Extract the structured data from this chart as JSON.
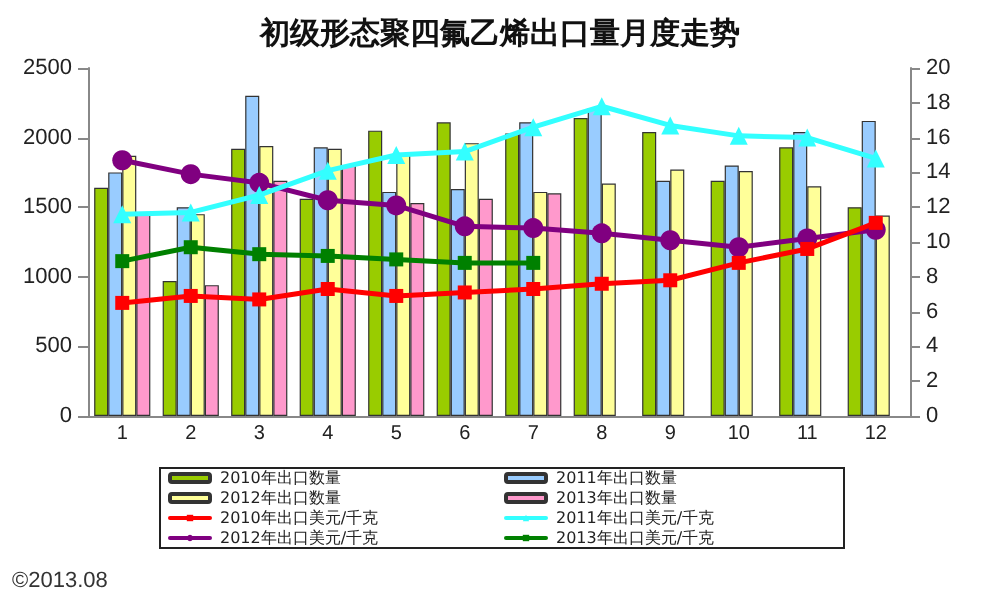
{
  "chart_data": {
    "type": "bar",
    "title": "初级形态聚四氟乙烯出口量月度走势",
    "categories": [
      "1",
      "2",
      "3",
      "4",
      "5",
      "6",
      "7",
      "8",
      "9",
      "10",
      "11",
      "12"
    ],
    "series": [
      {
        "name": "2010年出口数量",
        "color": "#99cc00",
        "values": [
          1640,
          970,
          1920,
          1560,
          2050,
          2110,
          2030,
          2140,
          2040,
          1690,
          1930,
          1500
        ]
      },
      {
        "name": "2011年出口数量",
        "color": "#99ccff",
        "values": [
          1750,
          1500,
          2300,
          1930,
          1610,
          1630,
          2110,
          2210,
          1690,
          1800,
          2040,
          2120
        ]
      },
      {
        "name": "2012年出口数量",
        "color": "#ffff99",
        "values": [
          1870,
          1450,
          1940,
          1920,
          1880,
          1960,
          1610,
          1670,
          1770,
          1760,
          1650,
          1440
        ]
      },
      {
        "name": "2013年出口数量",
        "color": "#ff99cc",
        "values": [
          1450,
          940,
          1690,
          1800,
          1530,
          1560,
          1600,
          null,
          null,
          null,
          null,
          null
        ]
      },
      {
        "name": "2010年出口美元/千克",
        "type": "line",
        "axis": "y2",
        "marker": "square",
        "color": "#ff0000",
        "values": [
          6.5,
          6.9,
          6.7,
          7.3,
          6.9,
          7.1,
          7.3,
          7.6,
          7.8,
          8.8,
          9.6,
          11.1
        ]
      },
      {
        "name": "2011年出口美元/千克",
        "type": "line",
        "axis": "y2",
        "marker": "triangle",
        "color": "#33ffff",
        "values": [
          11.6,
          11.7,
          12.7,
          14.1,
          15.0,
          15.2,
          16.6,
          17.8,
          16.7,
          16.1,
          16.0,
          14.8
        ]
      },
      {
        "name": "2012年出口美元/千克",
        "type": "line",
        "axis": "y2",
        "marker": "circle",
        "color": "#800080",
        "values": [
          14.7,
          13.9,
          13.4,
          12.4,
          12.1,
          10.9,
          10.8,
          10.5,
          10.1,
          9.7,
          10.2,
          10.7
        ]
      },
      {
        "name": "2013年出口美元/千克",
        "type": "line",
        "axis": "y2",
        "marker": "square",
        "color": "#008000",
        "values": [
          8.9,
          9.7,
          9.3,
          9.2,
          9.0,
          8.8,
          8.8,
          null,
          null,
          null,
          null,
          null
        ]
      }
    ],
    "ylim": [
      0,
      2500
    ],
    "yticks": [
      0,
      500,
      1000,
      1500,
      2000,
      2500
    ],
    "y2lim": [
      0,
      20
    ],
    "y2ticks": [
      0,
      2,
      4,
      6,
      8,
      10,
      12,
      14,
      16,
      18,
      20
    ],
    "grid": false,
    "legend": "bottom",
    "annotations": [
      "©2013.08"
    ]
  }
}
